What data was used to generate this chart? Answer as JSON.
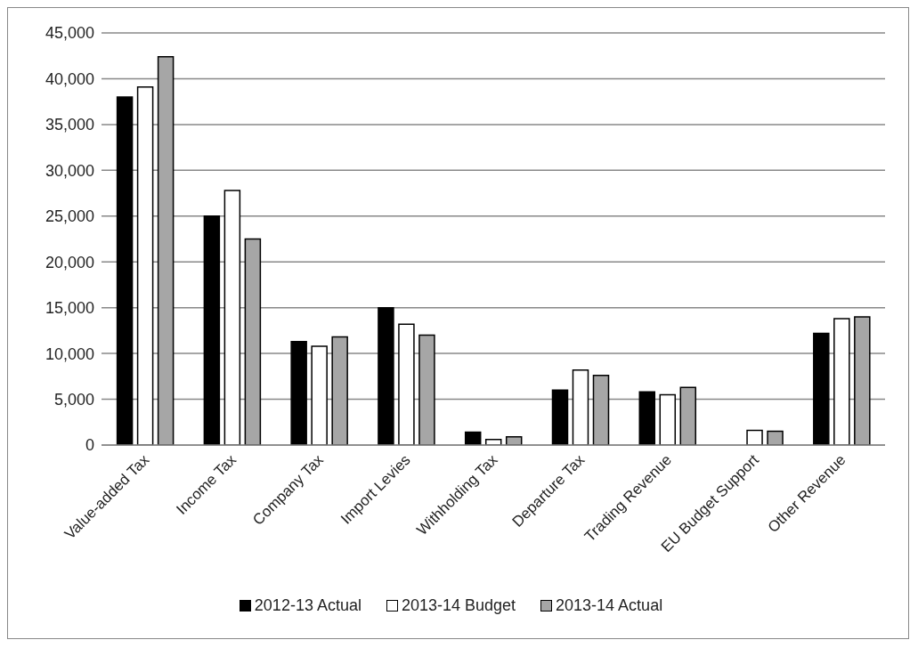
{
  "chart_data": {
    "type": "bar",
    "categories": [
      "Value-added Tax",
      "Income Tax",
      "Company Tax",
      "Import Levies",
      "Withholding Tax",
      "Departure Tax",
      "Trading Revenue",
      "EU Budget Support",
      "Other Revenue"
    ],
    "series": [
      {
        "name": "2012-13 Actual",
        "color": "#000000",
        "values": [
          38000,
          25000,
          11300,
          15000,
          1400,
          6000,
          5800,
          null,
          12200
        ]
      },
      {
        "name": "2013-14 Budget",
        "color": "#ffffff",
        "values": [
          39100,
          27800,
          10800,
          13200,
          600,
          8200,
          5500,
          1600,
          13800
        ]
      },
      {
        "name": "2013-14 Actual",
        "color": "#a6a6a6",
        "values": [
          42400,
          22500,
          11800,
          12000,
          900,
          7600,
          6300,
          1500,
          14000
        ]
      }
    ],
    "ylim": [
      0,
      45000
    ],
    "yticks": [
      0,
      {
        "value": 5000,
        "label": "5,000"
      },
      {
        "value": 10000,
        "label": "10,000"
      },
      {
        "value": 15000,
        "label": "15,000"
      },
      {
        "value": 20000,
        "label": "20,000"
      },
      {
        "value": 25000,
        "label": "25,000"
      },
      {
        "value": 30000,
        "label": "30,000"
      },
      {
        "value": 35000,
        "label": "35,000"
      },
      {
        "value": 40000,
        "label": "40,000"
      },
      {
        "value": 45000,
        "label": "45,000"
      }
    ],
    "grid": "y",
    "legend": "bottom"
  }
}
